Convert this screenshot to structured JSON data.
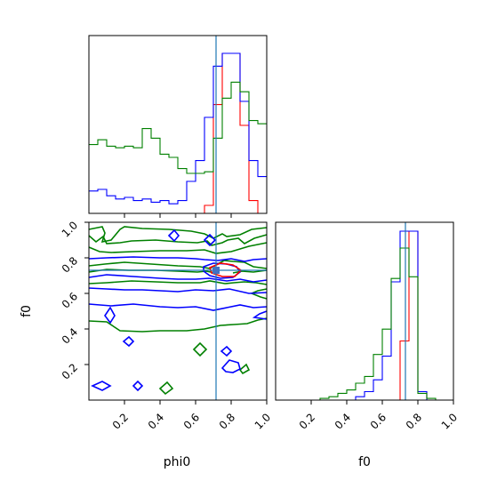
{
  "chart_data": {
    "type": "corner",
    "parameters": [
      "phi0",
      "f0"
    ],
    "colors": {
      "red": "#ff0000",
      "blue": "#0000ff",
      "green": "#008000",
      "truth": "#1f77b4"
    },
    "truth": {
      "phi0": 0.72,
      "f0": 0.73
    },
    "grid": false,
    "panels": [
      {
        "name": "phi0-marginal",
        "type": "histogram",
        "xlim": [
          0,
          1
        ],
        "bin_edges": [
          0.0,
          0.05,
          0.1,
          0.15,
          0.2,
          0.25,
          0.3,
          0.35,
          0.4,
          0.45,
          0.5,
          0.55,
          0.6,
          0.65,
          0.7,
          0.75,
          0.8,
          0.85,
          0.9,
          0.95,
          1.0
        ],
        "series": [
          {
            "color": "red",
            "heights": [
              0,
              0,
              0,
              0,
              0,
              0,
              0,
              0,
              0,
              0,
              0,
              0,
              0,
              0.05,
              0.68,
              1.0,
              1.0,
              0.55,
              0.08,
              0,
              0
            ]
          },
          {
            "color": "blue",
            "heights": [
              0.14,
              0.15,
              0.11,
              0.09,
              0.1,
              0.08,
              0.09,
              0.07,
              0.08,
              0.06,
              0.08,
              0.2,
              0.33,
              0.6,
              0.92,
              1.0,
              1.0,
              0.7,
              0.33,
              0.23,
              0.0
            ]
          },
          {
            "color": "green",
            "heights": [
              0.43,
              0.46,
              0.42,
              0.41,
              0.42,
              0.41,
              0.53,
              0.47,
              0.37,
              0.35,
              0.28,
              0.25,
              0.25,
              0.26,
              0.47,
              0.72,
              0.82,
              0.76,
              0.58,
              0.56,
              0.0
            ]
          }
        ]
      },
      {
        "name": "f0-vs-phi0",
        "type": "contour",
        "xlabel": "phi0",
        "ylabel": "f0",
        "xlim": [
          0,
          1
        ],
        "ylim": [
          0,
          1
        ],
        "xticks": [
          "0.2",
          "0.4",
          "0.6",
          "0.8",
          "1.0"
        ],
        "yticks": [
          "0.2",
          "0.4",
          "0.6",
          "0.8",
          "1.0"
        ]
      },
      {
        "name": "f0-marginal",
        "type": "histogram",
        "xlabel": "f0",
        "xlim": [
          0,
          1
        ],
        "xticks": [
          "0.2",
          "0.4",
          "0.6",
          "0.8",
          "1.0"
        ],
        "bin_edges": [
          0.0,
          0.05,
          0.1,
          0.15,
          0.2,
          0.25,
          0.3,
          0.35,
          0.4,
          0.45,
          0.5,
          0.55,
          0.6,
          0.65,
          0.7,
          0.75,
          0.8,
          0.85,
          0.9,
          0.95,
          1.0
        ],
        "series": [
          {
            "color": "red",
            "heights": [
              0,
              0,
              0,
              0,
              0,
              0,
              0,
              0,
              0,
              0,
              0,
              0,
              0,
              0,
              0.35,
              1.0,
              0.05,
              0,
              0,
              0,
              0
            ]
          },
          {
            "color": "blue",
            "heights": [
              0,
              0,
              0,
              0,
              0,
              0,
              0,
              0,
              0,
              0.02,
              0.05,
              0.12,
              0.26,
              0.7,
              1.0,
              1.0,
              0.05,
              0,
              0,
              0,
              0
            ]
          },
          {
            "color": "green",
            "heights": [
              0,
              0,
              0,
              0,
              0,
              0.01,
              0.02,
              0.04,
              0.06,
              0.1,
              0.14,
              0.27,
              0.42,
              0.72,
              0.9,
              0.73,
              0.04,
              0.01,
              0,
              0,
              0
            ]
          }
        ]
      }
    ]
  }
}
